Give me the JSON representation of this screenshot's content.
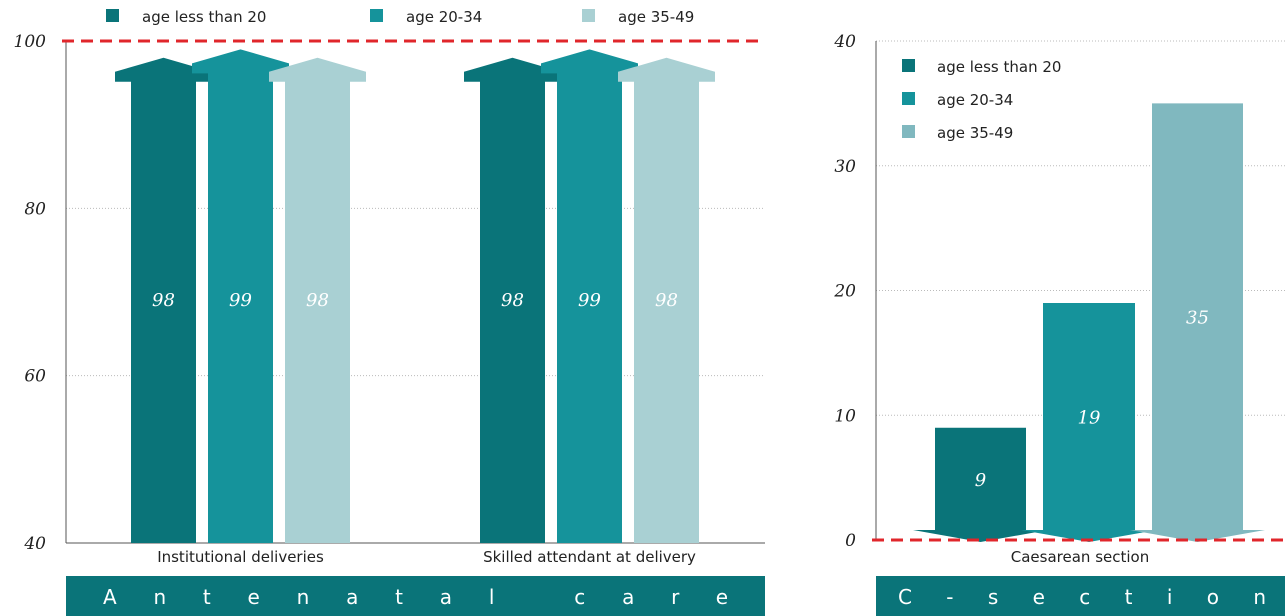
{
  "chart_data": [
    {
      "type": "bar",
      "title": "Antenatal care",
      "categories": [
        "Institutional deliveries",
        "Skilled attendant at delivery"
      ],
      "series": [
        {
          "name": "age less than 20",
          "values": [
            98,
            98
          ],
          "color": "#0a7479"
        },
        {
          "name": "age 20-34",
          "values": [
            99,
            99
          ],
          "color": "#15939b"
        },
        {
          "name": "age 35-49",
          "values": [
            98,
            98
          ],
          "color": "#a9d0d3"
        }
      ],
      "ylim": [
        40,
        100
      ],
      "yticks": [
        40,
        60,
        80,
        100
      ],
      "reference_line": {
        "value": 100,
        "style": "dashed",
        "color": "#e0262b"
      },
      "grid": true,
      "legend_position": "top",
      "mark_style": "arrow-up"
    },
    {
      "type": "bar",
      "title": "C-section",
      "categories": [
        "Caesarean section"
      ],
      "series": [
        {
          "name": "age less than 20",
          "values": [
            9
          ],
          "color": "#0a7479"
        },
        {
          "name": "age 20-34",
          "values": [
            19
          ],
          "color": "#15939b"
        },
        {
          "name": "age 35-49",
          "values": [
            35
          ],
          "color": "#80b8bf"
        }
      ],
      "ylim": [
        0,
        40
      ],
      "yticks": [
        0,
        10,
        20,
        30,
        40
      ],
      "reference_line": {
        "value": 0,
        "style": "dashed",
        "color": "#e0262b"
      },
      "grid": true,
      "legend_position": "top-left",
      "mark_style": "bar-with-arrow-base"
    }
  ],
  "banners": [
    "Antenatal care",
    "C-section"
  ],
  "colors": {
    "banner_bg": "#0a7479",
    "grid": "#bbbbbb",
    "axis": "#555555"
  }
}
